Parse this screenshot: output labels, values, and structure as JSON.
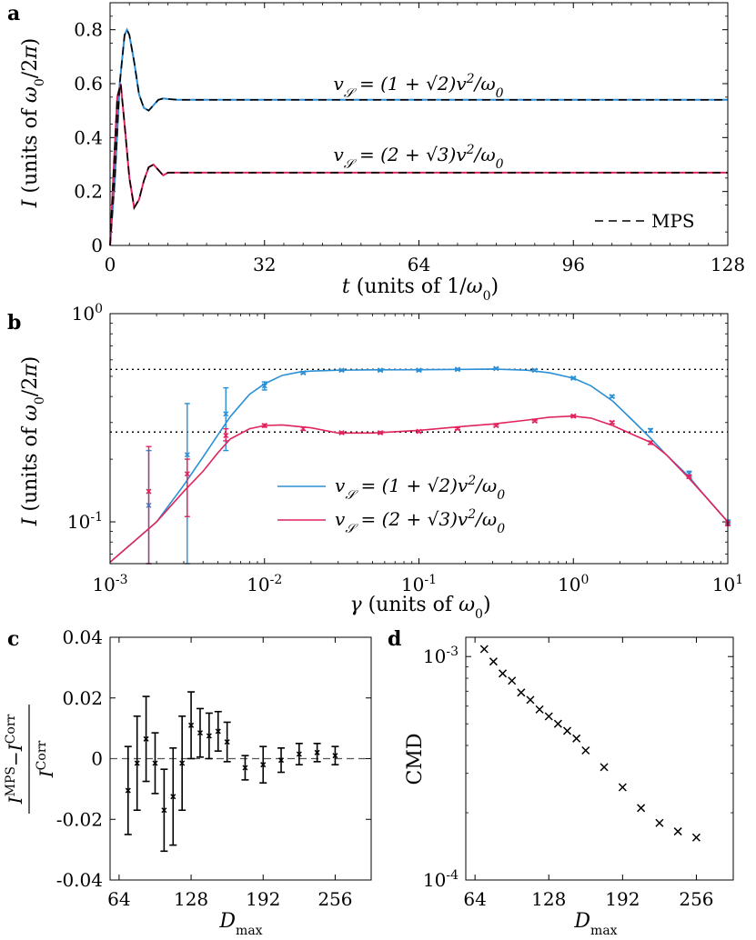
{
  "colors": {
    "blue": "#2a8fd4",
    "red": "#e0245e",
    "mps": "#000000",
    "dotted": "#000000"
  },
  "chart_data": [
    {
      "panel": "a",
      "type": "line",
      "xlabel": "t (units of 1/ω0)",
      "ylabel": "I (units of ω0/2π)",
      "xlim": [
        0,
        128
      ],
      "ylim": [
        0,
        0.9
      ],
      "xticks": [
        0,
        32,
        64,
        96,
        128
      ],
      "yticks": [
        0,
        0.2,
        0.4,
        0.6,
        0.8
      ],
      "xtick_labels": [
        "0",
        "32",
        "64",
        "96",
        "128"
      ],
      "ytick_labels": [
        "0",
        "0.2",
        "0.4",
        "0.6",
        "0.8"
      ],
      "annotations": [
        "vS = (1 + √2)v²/ω0",
        "vS = (2 + √3)v²/ω0"
      ],
      "legend": {
        "position": "bottom-right",
        "label": "MPS"
      },
      "series": [
        {
          "color_key": "blue",
          "x": [
            0,
            1,
            2,
            3,
            3.5,
            4,
            5,
            6,
            7,
            8,
            9,
            10,
            11,
            12,
            14,
            16,
            20,
            30,
            64,
            128
          ],
          "y": [
            0,
            0.25,
            0.6,
            0.78,
            0.8,
            0.78,
            0.68,
            0.56,
            0.51,
            0.5,
            0.52,
            0.54,
            0.545,
            0.543,
            0.54,
            0.54,
            0.54,
            0.54,
            0.54,
            0.54
          ]
        },
        {
          "color_key": "red",
          "x": [
            0,
            0.8,
            1.5,
            2.2,
            3,
            4,
            5,
            6,
            7,
            8,
            9,
            10,
            11,
            12,
            14,
            16,
            20,
            30,
            64,
            128
          ],
          "y": [
            0,
            0.3,
            0.55,
            0.6,
            0.45,
            0.25,
            0.14,
            0.17,
            0.24,
            0.29,
            0.3,
            0.28,
            0.26,
            0.27,
            0.27,
            0.27,
            0.27,
            0.27,
            0.27,
            0.27
          ]
        }
      ]
    },
    {
      "panel": "b",
      "type": "line",
      "xscale": "log",
      "yscale": "log",
      "xlabel": "γ (units of ω0)",
      "ylabel": "I (units of ω0/2π)",
      "xlim": [
        0.001,
        10
      ],
      "ylim": [
        0.063,
        1
      ],
      "xtick_exponents": [
        -3,
        -2,
        -1,
        0,
        1
      ],
      "ytick_exponents": [
        -1,
        0
      ],
      "reference_lines": [
        0.54,
        0.27
      ],
      "legend": {
        "position": "center",
        "entries": [
          "vS = (1 + √2)v²/ω0",
          "vS = (2 + √3)v²/ω0"
        ]
      },
      "series": [
        {
          "name": "vS = (1 + √2)v²/ω0",
          "color_key": "blue",
          "curve_x": [
            0.001,
            0.0015,
            0.002,
            0.003,
            0.004,
            0.005,
            0.006,
            0.008,
            0.01,
            0.013,
            0.017,
            0.02,
            0.03,
            0.05,
            0.1,
            0.2,
            0.3,
            0.5,
            0.7,
            1,
            1.3,
            1.8,
            2.5,
            3.2,
            4,
            5.6,
            7,
            10
          ],
          "curve_y": [
            0.064,
            0.083,
            0.1,
            0.15,
            0.205,
            0.262,
            0.32,
            0.41,
            0.46,
            0.505,
            0.525,
            0.53,
            0.535,
            0.537,
            0.538,
            0.54,
            0.542,
            0.535,
            0.52,
            0.49,
            0.45,
            0.38,
            0.3,
            0.25,
            0.21,
            0.165,
            0.135,
            0.1
          ],
          "points_x": [
            0.00178,
            0.00316,
            0.00562,
            0.01,
            0.0178,
            0.0316,
            0.0562,
            0.1,
            0.178,
            0.316,
            0.562,
            1,
            1.78,
            3.16,
            5.62,
            10
          ],
          "points_y": [
            0.12,
            0.21,
            0.33,
            0.45,
            0.52,
            0.535,
            0.535,
            0.535,
            0.54,
            0.545,
            0.535,
            0.49,
            0.4,
            0.275,
            0.17,
            0.1
          ],
          "err_low": [
            0.063,
            0.063,
            0.22,
            0.43,
            0.515,
            0.53,
            0.53,
            0.53,
            0.535,
            0.54,
            0.53,
            0.485,
            0.395,
            0.27,
            0.165,
            0.098
          ],
          "err_high": [
            0.22,
            0.37,
            0.44,
            0.47,
            0.525,
            0.54,
            0.54,
            0.54,
            0.545,
            0.55,
            0.54,
            0.495,
            0.405,
            0.28,
            0.175,
            0.102
          ]
        },
        {
          "name": "vS = (2 + √3)v²/ω0",
          "color_key": "red",
          "curve_x": [
            0.001,
            0.0015,
            0.002,
            0.003,
            0.004,
            0.005,
            0.006,
            0.008,
            0.01,
            0.013,
            0.02,
            0.03,
            0.05,
            0.1,
            0.2,
            0.3,
            0.5,
            0.7,
            1,
            1.3,
            1.8,
            2.5,
            3.2,
            4,
            5.6,
            7,
            10
          ],
          "curve_y": [
            0.064,
            0.083,
            0.1,
            0.14,
            0.175,
            0.215,
            0.25,
            0.28,
            0.29,
            0.292,
            0.283,
            0.267,
            0.267,
            0.275,
            0.288,
            0.295,
            0.308,
            0.318,
            0.322,
            0.315,
            0.29,
            0.26,
            0.24,
            0.21,
            0.162,
            0.135,
            0.1
          ],
          "points_x": [
            0.00178,
            0.00316,
            0.00562,
            0.01,
            0.0178,
            0.0316,
            0.0562,
            0.1,
            0.178,
            0.316,
            0.562,
            1,
            1.78,
            3.16,
            5.62,
            10
          ],
          "points_y": [
            0.14,
            0.17,
            0.26,
            0.29,
            0.28,
            0.268,
            0.268,
            0.272,
            0.28,
            0.29,
            0.305,
            0.322,
            0.3,
            0.24,
            0.165,
            0.098
          ],
          "err_low": [
            0.063,
            0.106,
            0.245,
            0.285,
            0.275,
            0.265,
            0.265,
            0.269,
            0.277,
            0.287,
            0.302,
            0.318,
            0.296,
            0.236,
            0.162,
            0.096
          ],
          "err_high": [
            0.23,
            0.2,
            0.28,
            0.295,
            0.285,
            0.271,
            0.271,
            0.275,
            0.283,
            0.293,
            0.308,
            0.326,
            0.304,
            0.244,
            0.168,
            0.1
          ]
        }
      ]
    },
    {
      "panel": "c",
      "type": "scatter",
      "xlabel": "Dmax",
      "ylabel": "(I^MPS − I^Corr) / I^Corr",
      "xlim": [
        56,
        288
      ],
      "ylim": [
        -0.04,
        0.04
      ],
      "xticks": [
        64,
        128,
        192,
        256
      ],
      "yticks": [
        -0.04,
        -0.02,
        0,
        0.02,
        0.04
      ],
      "ytick_labels": [
        "-0.04",
        "-0.02",
        "0",
        "0.02",
        "0.04"
      ],
      "reference_line": 0,
      "x": [
        72,
        80,
        88,
        96,
        104,
        112,
        120,
        128,
        136,
        144,
        152,
        160,
        176,
        192,
        208,
        224,
        240,
        256
      ],
      "y": [
        -0.0105,
        -0.0015,
        0.0065,
        -0.0015,
        -0.017,
        -0.0125,
        -0.0015,
        0.011,
        0.0085,
        0.0075,
        0.009,
        0.0055,
        -0.003,
        -0.002,
        -0.0005,
        0.0015,
        0.002,
        0.001
      ],
      "err": [
        0.0145,
        0.0155,
        0.014,
        0.01,
        0.0135,
        0.016,
        0.0155,
        0.011,
        0.008,
        0.0075,
        0.0065,
        0.0065,
        0.004,
        0.006,
        0.004,
        0.0035,
        0.003,
        0.003
      ]
    },
    {
      "panel": "d",
      "type": "scatter",
      "yscale": "log",
      "xlabel": "Dmax",
      "ylabel": "CMD",
      "xlim": [
        56,
        288
      ],
      "ylim": [
        0.0001,
        0.00122
      ],
      "xticks": [
        64,
        128,
        192,
        256
      ],
      "ytick_exponents": [
        -4,
        -3
      ],
      "x": [
        72,
        80,
        88,
        96,
        104,
        112,
        120,
        128,
        136,
        144,
        152,
        160,
        176,
        192,
        208,
        224,
        240,
        256
      ],
      "y": [
        0.00108,
        0.00095,
        0.00084,
        0.00078,
        0.00069,
        0.00064,
        0.00058,
        0.00054,
        0.0005,
        0.000465,
        0.00043,
        0.00038,
        0.00032,
        0.00026,
        0.00021,
        0.00018,
        0.000165,
        0.000155
      ]
    }
  ],
  "panel_labels": [
    "a",
    "b",
    "c",
    "d"
  ]
}
